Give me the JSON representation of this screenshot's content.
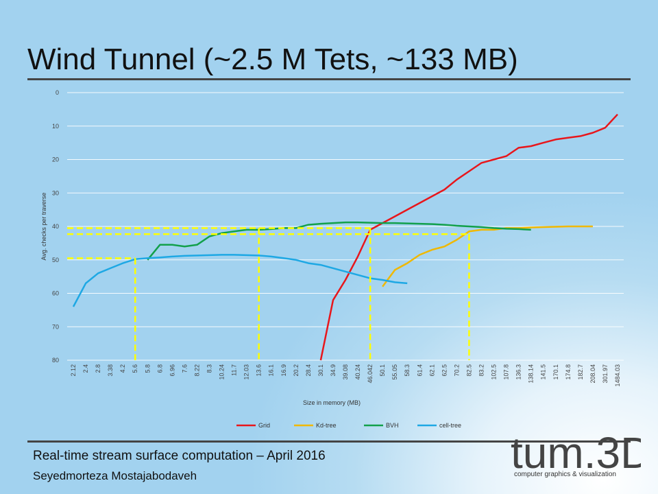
{
  "slide": {
    "title": "Wind Tunnel (~2.5 M Tets, ~133 MB)",
    "footer_line1": "Real-time stream surface computation – April 2016",
    "footer_line2": "Seyedmorteza Mostajabodaveh",
    "logo_text": "tum.3D",
    "logo_tagline": "computer graphics & visualization"
  },
  "chart_data": {
    "type": "line",
    "xlabel": "Size in memory (MB)",
    "ylabel": "Avg. checks per traverse",
    "ylim": [
      0,
      80
    ],
    "y_inverted": true,
    "yticks": [
      0,
      10,
      20,
      30,
      40,
      50,
      60,
      70,
      80
    ],
    "grid": true,
    "legend_position": "bottom",
    "categories": [
      "2.12",
      "2.4",
      "2.8",
      "3.38",
      "4.2",
      "5.6",
      "5.8",
      "6.8",
      "6.96",
      "7.6",
      "8.22",
      "8.3",
      "10.24",
      "11.7",
      "12.03",
      "13.6",
      "16.1",
      "16.9",
      "20.2",
      "28.4",
      "30.1",
      "34.9",
      "39.08",
      "40.24",
      "46.042",
      "50.1",
      "55.05",
      "58.3",
      "61.4",
      "62.1",
      "62.5",
      "70.2",
      "82.5",
      "83.2",
      "102.5",
      "107.8",
      "136.3",
      "138.14",
      "141.5",
      "170.1",
      "174.8",
      "182.7",
      "208.04",
      "301.97",
      "1484.03"
    ],
    "series": [
      {
        "name": "Grid",
        "color": "#e8161b",
        "points": [
          [
            20,
            80
          ],
          [
            21,
            62
          ],
          [
            22,
            56
          ],
          [
            23,
            49
          ],
          [
            24,
            41
          ],
          [
            25,
            39
          ],
          [
            26,
            37
          ],
          [
            27,
            35
          ],
          [
            28,
            33
          ],
          [
            29,
            31
          ],
          [
            30,
            29
          ],
          [
            31,
            26
          ],
          [
            32,
            23.5
          ],
          [
            33,
            21
          ],
          [
            34,
            20
          ],
          [
            35,
            19
          ],
          [
            36,
            16.5
          ],
          [
            37,
            16
          ],
          [
            38,
            15
          ],
          [
            39,
            14
          ],
          [
            40,
            13.5
          ],
          [
            41,
            13
          ],
          [
            42,
            12
          ],
          [
            43,
            10.5
          ],
          [
            44,
            6.5
          ]
        ]
      },
      {
        "name": "Kd-tree",
        "color": "#f0b800",
        "points": [
          [
            25,
            58
          ],
          [
            26,
            53
          ],
          [
            27,
            51
          ],
          [
            28,
            48.5
          ],
          [
            29,
            47
          ],
          [
            30,
            46
          ],
          [
            31,
            44
          ],
          [
            32,
            41.5
          ],
          [
            33,
            41
          ],
          [
            34,
            41
          ],
          [
            35,
            40.5
          ],
          [
            36,
            40.5
          ],
          [
            37,
            40.3
          ],
          [
            38,
            40.2
          ],
          [
            39,
            40.1
          ],
          [
            40,
            40
          ],
          [
            41,
            40
          ],
          [
            42,
            40
          ]
        ]
      },
      {
        "name": "BVH",
        "color": "#12a04b",
        "points": [
          [
            6,
            50
          ],
          [
            7,
            45.5
          ],
          [
            8,
            45.5
          ],
          [
            9,
            46
          ],
          [
            10,
            45.5
          ],
          [
            11,
            43
          ],
          [
            12,
            42
          ],
          [
            13,
            41.5
          ],
          [
            14,
            41
          ],
          [
            15,
            41
          ],
          [
            16,
            40.8
          ],
          [
            17,
            40.5
          ],
          [
            18,
            40.5
          ],
          [
            19,
            39.5
          ],
          [
            20,
            39.2
          ],
          [
            21,
            39
          ],
          [
            22,
            38.8
          ],
          [
            23,
            38.8
          ],
          [
            24,
            38.9
          ],
          [
            25,
            39
          ],
          [
            26,
            39
          ],
          [
            27,
            39.1
          ],
          [
            28,
            39.2
          ],
          [
            29,
            39.3
          ],
          [
            30,
            39.5
          ],
          [
            31,
            39.8
          ],
          [
            32,
            40
          ],
          [
            33,
            40.2
          ],
          [
            34,
            40.5
          ],
          [
            35,
            40.7
          ],
          [
            36,
            40.8
          ],
          [
            37,
            41
          ]
        ]
      },
      {
        "name": "cell-tree",
        "color": "#1ea8e4",
        "points": [
          [
            0,
            64
          ],
          [
            1,
            57
          ],
          [
            2,
            54
          ],
          [
            3,
            52.5
          ],
          [
            4,
            51
          ],
          [
            5,
            49.8
          ],
          [
            6,
            49.5
          ],
          [
            7,
            49.3
          ],
          [
            8,
            49
          ],
          [
            9,
            48.8
          ],
          [
            10,
            48.7
          ],
          [
            11,
            48.6
          ],
          [
            12,
            48.5
          ],
          [
            13,
            48.5
          ],
          [
            14,
            48.6
          ],
          [
            15,
            48.7
          ],
          [
            16,
            49
          ],
          [
            17,
            49.5
          ],
          [
            18,
            50
          ],
          [
            19,
            51
          ],
          [
            20,
            51.5
          ],
          [
            21,
            52.5
          ],
          [
            22,
            53.5
          ],
          [
            23,
            54.5
          ],
          [
            24,
            55.5
          ],
          [
            25,
            56
          ],
          [
            26,
            56.7
          ],
          [
            27,
            57
          ]
        ]
      }
    ],
    "annotations": [
      {
        "type": "h-dashed",
        "y": 40.5,
        "from": 0,
        "to": 24,
        "color": "#ffff00"
      },
      {
        "type": "h-dashed",
        "y": 42.3,
        "from": 0,
        "to": 32,
        "color": "#ffff00"
      },
      {
        "type": "h-dashed",
        "y": 49.5,
        "from": 0,
        "to": 5,
        "color": "#ffff00"
      },
      {
        "type": "v-dashed",
        "x": 5,
        "from": 49.5,
        "to": 80,
        "color": "#ffff00"
      },
      {
        "type": "v-dashed",
        "x": 15,
        "from": 40.5,
        "to": 80,
        "color": "#ffff00"
      },
      {
        "type": "v-dashed",
        "x": 24,
        "from": 40.5,
        "to": 80,
        "color": "#ffff00"
      },
      {
        "type": "v-dashed",
        "x": 32,
        "from": 42.3,
        "to": 80,
        "color": "#ffff00"
      }
    ]
  }
}
